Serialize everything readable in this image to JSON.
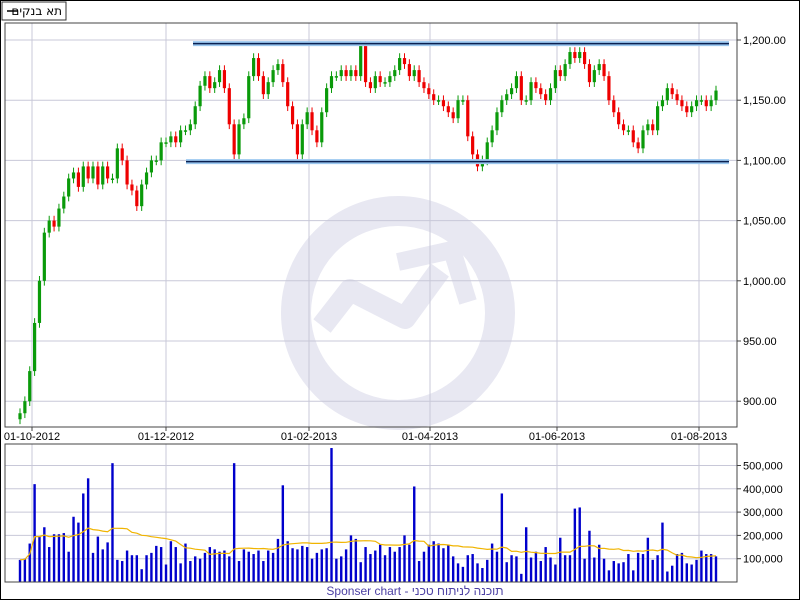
{
  "legend": {
    "label": "תא בנקים",
    "marker": "—"
  },
  "footer": "Sponser chart - תוכנה לניתוח טכני",
  "colors": {
    "up": "#0a9a0a",
    "down": "#ee0000",
    "volume": "#0000cc",
    "volume_avg": "#f0b400",
    "trendline": "#0a2050",
    "trendline_glow": "#9cc8f0",
    "grid": "#c8c8d8",
    "watermark": "#e8e8f2"
  },
  "chart_data": [
    {
      "type": "candlestick",
      "title": "",
      "ylim": [
        885,
        1210
      ],
      "grid": true,
      "legend_placement": "top-left",
      "x_tick_labels": [
        "01-10-2012",
        "01-12-2012",
        "01-02-2013",
        "01-04-2013",
        "01-06-2013",
        "01-08-2013"
      ],
      "y_ticks": [
        900,
        950,
        1000,
        1050,
        1100,
        1150,
        1200
      ],
      "y_tick_labels": [
        "900.00",
        "950.00",
        "1,000.00",
        "1,050.00",
        "1,100.00",
        "1,150.00",
        "1,200.00"
      ],
      "close": [
        890,
        900,
        925,
        965,
        1000,
        1040,
        1050,
        1045,
        1060,
        1070,
        1085,
        1090,
        1078,
        1095,
        1085,
        1095,
        1080,
        1095,
        1085,
        1085,
        1110,
        1100,
        1080,
        1075,
        1062,
        1080,
        1090,
        1100,
        1100,
        1115,
        1115,
        1120,
        1115,
        1125,
        1125,
        1130,
        1145,
        1162,
        1170,
        1160,
        1165,
        1175,
        1160,
        1130,
        1105,
        1130,
        1135,
        1170,
        1185,
        1170,
        1155,
        1165,
        1175,
        1180,
        1165,
        1145,
        1130,
        1105,
        1130,
        1140,
        1125,
        1115,
        1140,
        1160,
        1170,
        1170,
        1175,
        1170,
        1175,
        1170,
        1195,
        1165,
        1160,
        1170,
        1165,
        1165,
        1170,
        1175,
        1185,
        1180,
        1170,
        1175,
        1165,
        1160,
        1155,
        1150,
        1150,
        1145,
        1140,
        1135,
        1150,
        1150,
        1120,
        1105,
        1095,
        1100,
        1115,
        1125,
        1140,
        1150,
        1155,
        1160,
        1170,
        1150,
        1150,
        1165,
        1160,
        1155,
        1150,
        1160,
        1175,
        1170,
        1180,
        1190,
        1185,
        1190,
        1180,
        1165,
        1175,
        1180,
        1170,
        1150,
        1140,
        1130,
        1125,
        1125,
        1115,
        1110,
        1125,
        1130,
        1125,
        1145,
        1150,
        1160,
        1155,
        1150,
        1145,
        1140,
        1145,
        1150,
        1150,
        1145,
        1150,
        1158
      ],
      "first_open": 885,
      "trendlines": [
        {
          "label": "resistance",
          "value": 1197
        },
        {
          "label": "support",
          "value": 1099
        }
      ]
    },
    {
      "type": "bar",
      "title": "",
      "ylim": [
        0,
        580000
      ],
      "grid": true,
      "y_ticks": [
        100000,
        200000,
        300000,
        400000,
        500000
      ],
      "y_tick_labels": [
        "100,000",
        "200,000",
        "300,000",
        "400,000",
        "500,000"
      ],
      "values": [
        95000,
        100000,
        165000,
        420000,
        195000,
        235000,
        150000,
        205000,
        205000,
        210000,
        130000,
        280000,
        255000,
        380000,
        445000,
        125000,
        195000,
        140000,
        170000,
        510000,
        95000,
        90000,
        135000,
        115000,
        115000,
        55000,
        115000,
        125000,
        155000,
        150000,
        75000,
        175000,
        150000,
        80000,
        165000,
        90000,
        110000,
        100000,
        125000,
        150000,
        140000,
        130000,
        135000,
        110000,
        510000,
        90000,
        140000,
        130000,
        120000,
        135000,
        90000,
        135000,
        125000,
        185000,
        415000,
        175000,
        145000,
        140000,
        155000,
        150000,
        100000,
        125000,
        140000,
        145000,
        575000,
        100000,
        110000,
        140000,
        200000,
        185000,
        85000,
        150000,
        120000,
        135000,
        160000,
        115000,
        150000,
        130000,
        150000,
        200000,
        160000,
        410000,
        90000,
        130000,
        160000,
        175000,
        165000,
        145000,
        160000,
        110000,
        80000,
        65000,
        115000,
        120000,
        80000,
        60000,
        95000,
        165000,
        130000,
        380000,
        85000,
        115000,
        110000,
        35000,
        235000,
        105000,
        130000,
        90000,
        150000,
        105000,
        75000,
        190000,
        115000,
        115000,
        315000,
        320000,
        100000,
        220000,
        105000,
        160000,
        100000,
        50000,
        90000,
        80000,
        85000,
        120000,
        50000,
        125000,
        120000,
        190000,
        95000,
        115000,
        255000,
        45000,
        70000,
        120000,
        125000,
        80000,
        75000,
        95000,
        135000,
        120000,
        120000,
        110000
      ],
      "series_overlay": "moving average"
    }
  ]
}
